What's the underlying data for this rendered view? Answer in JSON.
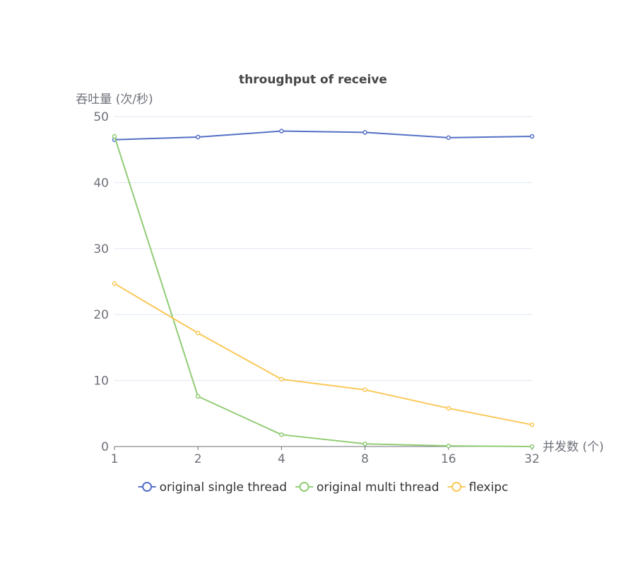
{
  "chart_data": {
    "type": "line",
    "title": "throughput of receive",
    "xlabel": "并发数 (个)",
    "ylabel": "吞吐量 (次/秒)",
    "categories": [
      "1",
      "2",
      "4",
      "8",
      "16",
      "32"
    ],
    "ylim": [
      0,
      50
    ],
    "yticks": [
      0,
      10,
      20,
      30,
      40,
      50
    ],
    "grid": true,
    "legend_position": "bottom",
    "series": [
      {
        "name": "original single thread",
        "color": "#5470c6",
        "values": [
          46.5,
          46.9,
          47.8,
          47.6,
          46.8,
          47.0
        ]
      },
      {
        "name": "original multi thread",
        "color": "#91cc75",
        "values": [
          47.0,
          7.6,
          1.8,
          0.4,
          0.1,
          0.0
        ]
      },
      {
        "name": "flexipc",
        "color": "#fac858",
        "values": [
          24.7,
          17.2,
          10.2,
          8.6,
          5.8,
          3.3
        ]
      }
    ]
  }
}
